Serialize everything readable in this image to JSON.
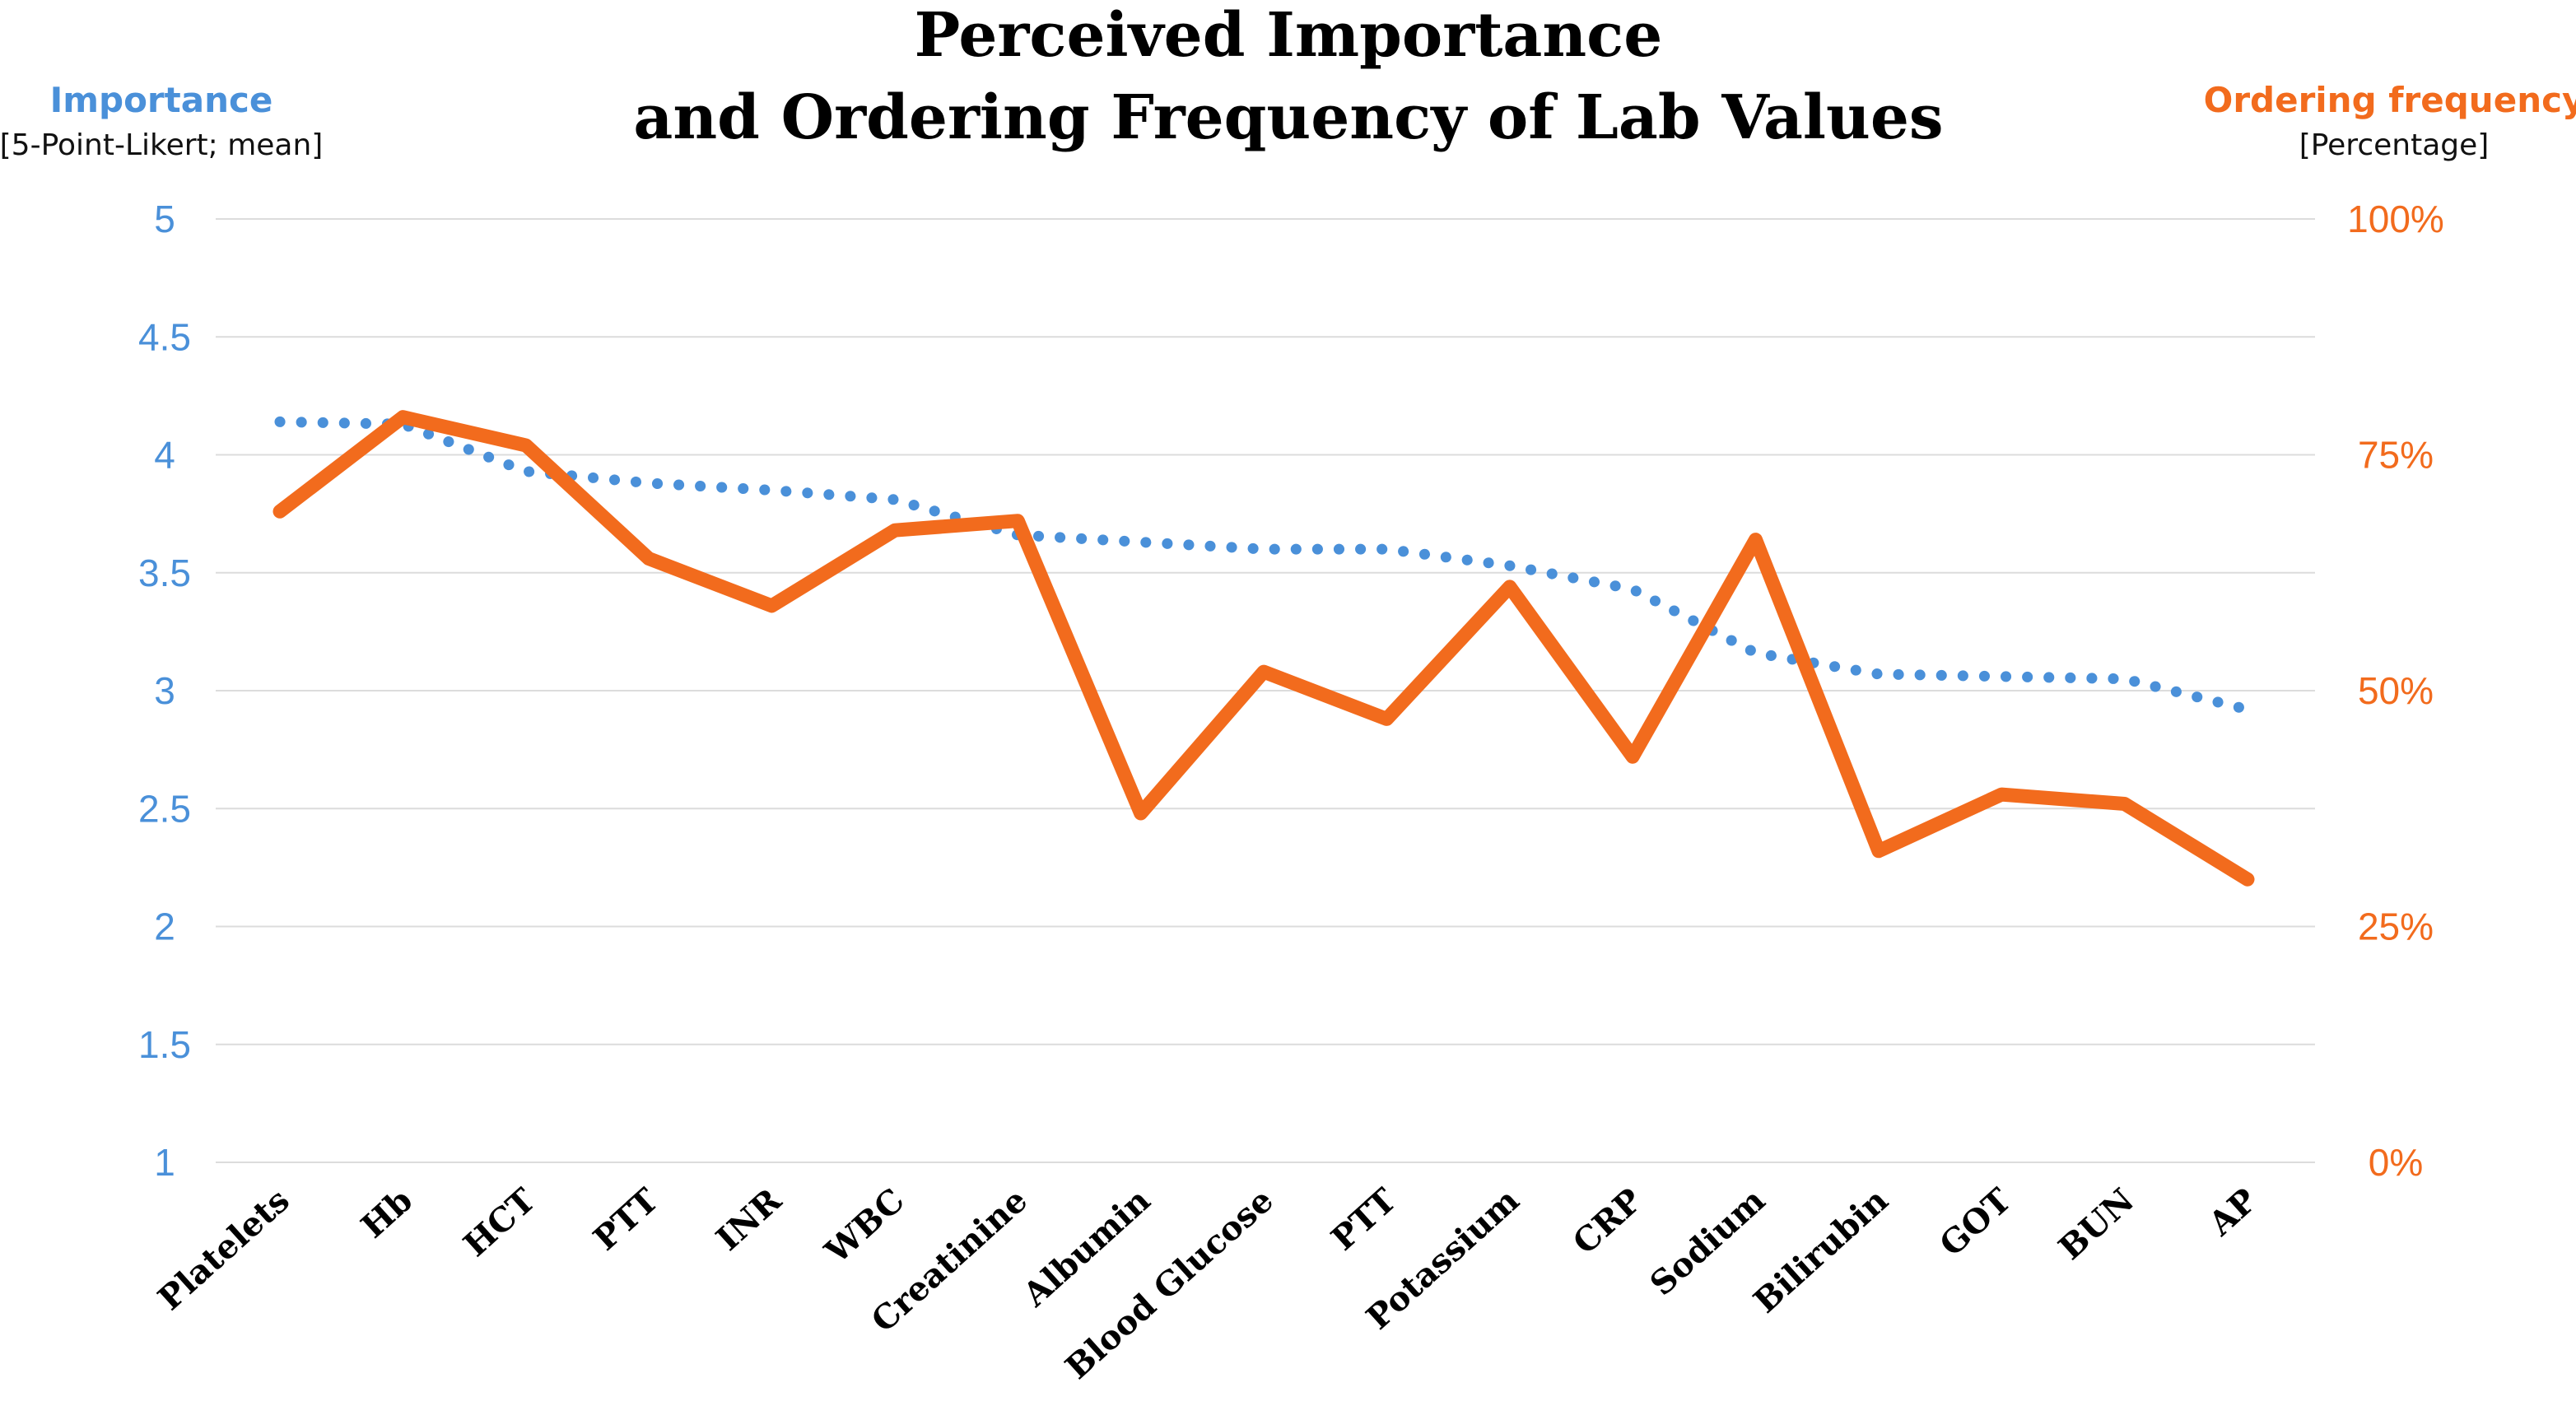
{
  "colors": {
    "importance": "#4a90d9",
    "frequency": "#f26b1d",
    "grid": "#dcdcdc",
    "text": "#000000"
  },
  "chart_data": {
    "type": "line",
    "title_line1": "Perceived Importance",
    "title_line2": "and Ordering Frequency of Lab Values",
    "left_axis": {
      "title": "Importance",
      "subtitle": "[5-Point-Likert; mean]",
      "range": [
        1,
        5
      ],
      "ticks": [
        "1",
        "1.5",
        "2",
        "2.5",
        "3",
        "3.5",
        "4",
        "4.5",
        "5"
      ],
      "tick_values": [
        1,
        1.5,
        2,
        2.5,
        3,
        3.5,
        4,
        4.5,
        5
      ]
    },
    "right_axis": {
      "title": "Ordering frequency",
      "subtitle": "[Percentage]",
      "range": [
        0,
        100
      ],
      "ticks": [
        "0%",
        "25%",
        "50%",
        "75%",
        "100%"
      ],
      "tick_values": [
        0,
        25,
        50,
        75,
        100
      ]
    },
    "categories": [
      "Platelets",
      "Hb",
      "HCT",
      "PTT",
      "INR",
      "WBC",
      "Creatinine",
      "Albumin",
      "Blood Glucose",
      "PTT",
      "Potassium",
      "CRP",
      "Sodium",
      "Bilirubin",
      "GOT",
      "BUN",
      "AP"
    ],
    "series": [
      {
        "name": "Importance",
        "axis": "left",
        "style": "dotted",
        "values": [
          4.14,
          4.13,
          3.93,
          3.88,
          3.85,
          3.81,
          3.66,
          3.63,
          3.6,
          3.6,
          3.53,
          3.43,
          3.16,
          3.07,
          3.06,
          3.05,
          2.92
        ]
      },
      {
        "name": "Ordering frequency",
        "axis": "right",
        "style": "solid",
        "values": [
          69,
          79,
          76,
          64,
          59,
          67,
          68,
          37,
          52,
          47,
          61,
          43,
          66,
          33,
          39,
          38,
          30
        ]
      }
    ]
  }
}
